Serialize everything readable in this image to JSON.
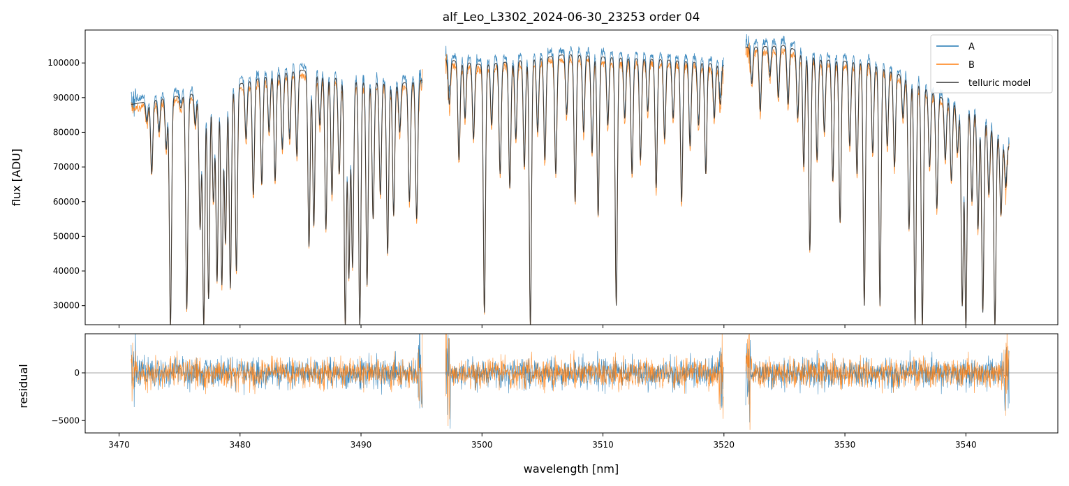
{
  "chart_data": {
    "type": "line",
    "title": "alf_Leo_L3302_2024-06-30_23253  order 04",
    "xlabel": "wavelength [nm]",
    "xlim": [
      3467.2,
      3547.6
    ],
    "xticks": [
      3470,
      3480,
      3490,
      3500,
      3510,
      3520,
      3530,
      3540
    ],
    "xtick_labels": [
      "3470",
      "3480",
      "3490",
      "3500",
      "3510",
      "3520",
      "3530",
      "3540"
    ],
    "top_panel": {
      "ylabel": "flux [ADU]",
      "ylim": [
        24500,
        109500
      ],
      "yticks": [
        30000,
        40000,
        50000,
        60000,
        70000,
        80000,
        90000,
        100000
      ],
      "ytick_labels": [
        "30000",
        "40000",
        "50000",
        "60000",
        "70000",
        "80000",
        "90000",
        "100000"
      ]
    },
    "bottom_panel": {
      "ylabel": "residual",
      "ylim": [
        -6300,
        4100
      ],
      "yticks": [
        -5000,
        0
      ],
      "ytick_labels": [
        "−5000",
        "0"
      ],
      "zero_line": true
    },
    "segments": [
      [
        3471.0,
        3495.1
      ],
      [
        3497.0,
        3520.0
      ],
      [
        3521.8,
        3543.6
      ]
    ],
    "continuum": [
      [
        3471.0,
        88000
      ],
      [
        3474,
        90000
      ],
      [
        3478,
        92000
      ],
      [
        3482,
        96000
      ],
      [
        3485,
        98000
      ],
      [
        3489,
        95000
      ],
      [
        3493,
        94000
      ],
      [
        3495.1,
        95000
      ],
      [
        3497.0,
        101000
      ],
      [
        3500,
        99500
      ],
      [
        3504,
        101000
      ],
      [
        3507,
        102500
      ],
      [
        3511,
        101500
      ],
      [
        3515,
        101000
      ],
      [
        3520,
        99500
      ],
      [
        3521.8,
        104500
      ],
      [
        3525,
        105000
      ],
      [
        3528,
        101000
      ],
      [
        3532,
        100000
      ],
      [
        3535,
        96000
      ],
      [
        3538,
        90000
      ],
      [
        3541,
        86000
      ],
      [
        3543.6,
        76000
      ]
    ],
    "absorption_lines": [
      [
        3472.3,
        83000
      ],
      [
        3472.7,
        68000
      ],
      [
        3473.3,
        80000
      ],
      [
        3473.9,
        75000
      ],
      [
        3474.25,
        24000
      ],
      [
        3475.1,
        87000
      ],
      [
        3475.6,
        29000
      ],
      [
        3476.3,
        82000
      ],
      [
        3476.7,
        52000
      ],
      [
        3477.0,
        24000
      ],
      [
        3477.4,
        32000
      ],
      [
        3477.8,
        60000
      ],
      [
        3478.1,
        37000
      ],
      [
        3478.5,
        36000
      ],
      [
        3478.8,
        48000
      ],
      [
        3479.2,
        35000
      ],
      [
        3479.7,
        40000
      ],
      [
        3480.5,
        78000
      ],
      [
        3481.1,
        62000
      ],
      [
        3481.8,
        65000
      ],
      [
        3482.4,
        80000
      ],
      [
        3482.9,
        66000
      ],
      [
        3483.5,
        75000
      ],
      [
        3484.1,
        78000
      ],
      [
        3484.7,
        73000
      ],
      [
        3485.7,
        47000
      ],
      [
        3486.1,
        53000
      ],
      [
        3486.6,
        82000
      ],
      [
        3487.1,
        52000
      ],
      [
        3487.6,
        62000
      ],
      [
        3488.2,
        68000
      ],
      [
        3488.7,
        24000
      ],
      [
        3489.0,
        38000
      ],
      [
        3489.3,
        41000
      ],
      [
        3489.9,
        24000
      ],
      [
        3490.5,
        36000
      ],
      [
        3491.0,
        55000
      ],
      [
        3491.6,
        62000
      ],
      [
        3492.2,
        45000
      ],
      [
        3492.7,
        56000
      ],
      [
        3493.2,
        80000
      ],
      [
        3494.0,
        60000
      ],
      [
        3494.6,
        55000
      ],
      [
        3497.3,
        88000
      ],
      [
        3498.1,
        72000
      ],
      [
        3498.6,
        84000
      ],
      [
        3499.3,
        78000
      ],
      [
        3500.2,
        28000
      ],
      [
        3500.8,
        82000
      ],
      [
        3501.5,
        68000
      ],
      [
        3502.3,
        64000
      ],
      [
        3502.8,
        78000
      ],
      [
        3503.5,
        70000
      ],
      [
        3504.0,
        24000
      ],
      [
        3504.6,
        80000
      ],
      [
        3505.2,
        72000
      ],
      [
        3506.1,
        68000
      ],
      [
        3507.0,
        85000
      ],
      [
        3507.7,
        60000
      ],
      [
        3508.4,
        80000
      ],
      [
        3509.1,
        74000
      ],
      [
        3509.6,
        56000
      ],
      [
        3510.4,
        82000
      ],
      [
        3511.1,
        30000
      ],
      [
        3511.8,
        84000
      ],
      [
        3512.4,
        68000
      ],
      [
        3513.1,
        72000
      ],
      [
        3513.7,
        86000
      ],
      [
        3514.4,
        64000
      ],
      [
        3515.1,
        78000
      ],
      [
        3515.8,
        84000
      ],
      [
        3516.5,
        60000
      ],
      [
        3517.2,
        76000
      ],
      [
        3517.9,
        82000
      ],
      [
        3518.5,
        68000
      ],
      [
        3519.2,
        84000
      ],
      [
        3519.7,
        88000
      ],
      [
        3522.3,
        94000
      ],
      [
        3523.0,
        86000
      ],
      [
        3523.8,
        96000
      ],
      [
        3524.5,
        90000
      ],
      [
        3525.3,
        88000
      ],
      [
        3526.1,
        84000
      ],
      [
        3526.6,
        70000
      ],
      [
        3527.1,
        46000
      ],
      [
        3527.7,
        72000
      ],
      [
        3528.3,
        80000
      ],
      [
        3529.0,
        66000
      ],
      [
        3529.6,
        54000
      ],
      [
        3530.4,
        76000
      ],
      [
        3531.0,
        68000
      ],
      [
        3531.6,
        30000
      ],
      [
        3532.3,
        74000
      ],
      [
        3532.9,
        30000
      ],
      [
        3533.5,
        76000
      ],
      [
        3534.1,
        70000
      ],
      [
        3534.8,
        84000
      ],
      [
        3535.3,
        52000
      ],
      [
        3535.8,
        24000
      ],
      [
        3536.4,
        24000
      ],
      [
        3537.0,
        70000
      ],
      [
        3537.6,
        58000
      ],
      [
        3538.3,
        72000
      ],
      [
        3538.8,
        66000
      ],
      [
        3539.3,
        74000
      ],
      [
        3539.7,
        30000
      ],
      [
        3540.0,
        24000
      ],
      [
        3540.5,
        60000
      ],
      [
        3541.0,
        52000
      ],
      [
        3541.4,
        28000
      ],
      [
        3541.9,
        62000
      ],
      [
        3542.4,
        24000
      ],
      [
        3542.9,
        56000
      ],
      [
        3543.3,
        64000
      ]
    ],
    "series": [
      {
        "name": "A",
        "color": "#1f77b4",
        "offset_frac": 0.015
      },
      {
        "name": "B",
        "color": "#ff7f0e",
        "offset_frac": -0.015
      },
      {
        "name": "telluric model",
        "color": "#333333",
        "offset_frac": 0.0
      }
    ],
    "legend_position": "upper-right"
  }
}
